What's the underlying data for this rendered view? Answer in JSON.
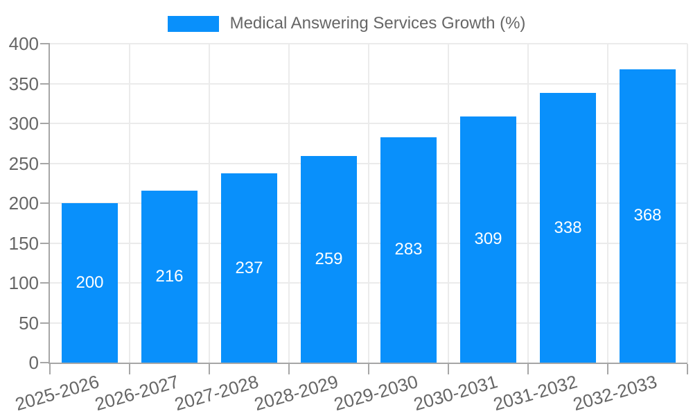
{
  "chart_data": {
    "type": "bar",
    "title": "Medical Answering Services Growth (%)",
    "categories": [
      "2025-2026",
      "2026-2027",
      "2027-2028",
      "2028-2029",
      "2029-2030",
      "2030-2031",
      "2031-2032",
      "2032-2033"
    ],
    "values": [
      200,
      216,
      237,
      259,
      283,
      309,
      338,
      368
    ],
    "xlabel": "",
    "ylabel": "",
    "ylim": [
      0,
      400
    ],
    "y_ticks": [
      0,
      50,
      100,
      150,
      200,
      250,
      300,
      350,
      400
    ],
    "grid": true,
    "legend_position": "top-center",
    "bar_labels_inside": true,
    "colors": {
      "bar": "#0990fb",
      "bar_label": "#ffffff",
      "axis_text": "#666666",
      "grid_line": "#ebebeb",
      "axis_line": "#a6a6a6",
      "background": "#ffffff"
    }
  }
}
